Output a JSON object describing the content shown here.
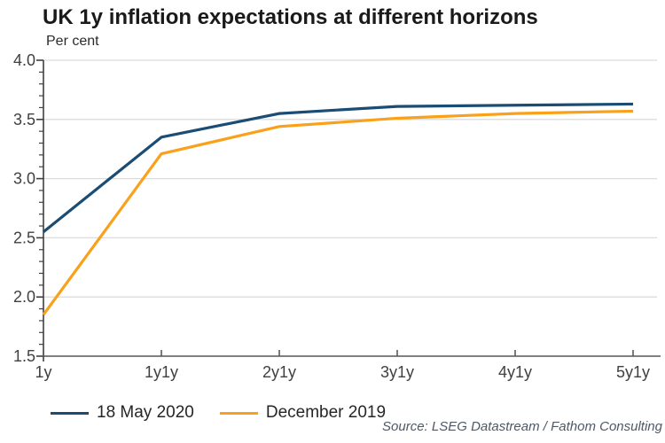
{
  "chart_data": {
    "type": "line",
    "title": "UK 1y inflation expectations at different horizons",
    "unit_label": "Per cent",
    "categories": [
      "1y",
      "1y1y",
      "2y1y",
      "3y1y",
      "4y1y",
      "5y1y"
    ],
    "series": [
      {
        "name": "18 May 2020",
        "color": "#1B4D74",
        "values": [
          2.55,
          3.35,
          3.55,
          3.61,
          3.62,
          3.63
        ]
      },
      {
        "name": "December 2019",
        "color": "#F9A11B",
        "values": [
          1.85,
          3.21,
          3.44,
          3.51,
          3.55,
          3.57
        ]
      }
    ],
    "ylim": [
      1.5,
      4.0
    ],
    "ytick_step": 0.5,
    "yminor_step": 0.1,
    "ytick_labels": [
      "1.5",
      "2.0",
      "2.5",
      "3.0",
      "3.5",
      "4.0"
    ],
    "grid": "horizontal",
    "legend_position": "bottom-left",
    "source": "Source: LSEG Datastream / Fathom Consulting",
    "colors": {
      "grid": "#DCDCDC",
      "x_axis": "#808080",
      "y_axis": "#404040",
      "tick_text": "#404040",
      "title_text": "#1A1A1A",
      "source_text": "#4D5966"
    }
  }
}
